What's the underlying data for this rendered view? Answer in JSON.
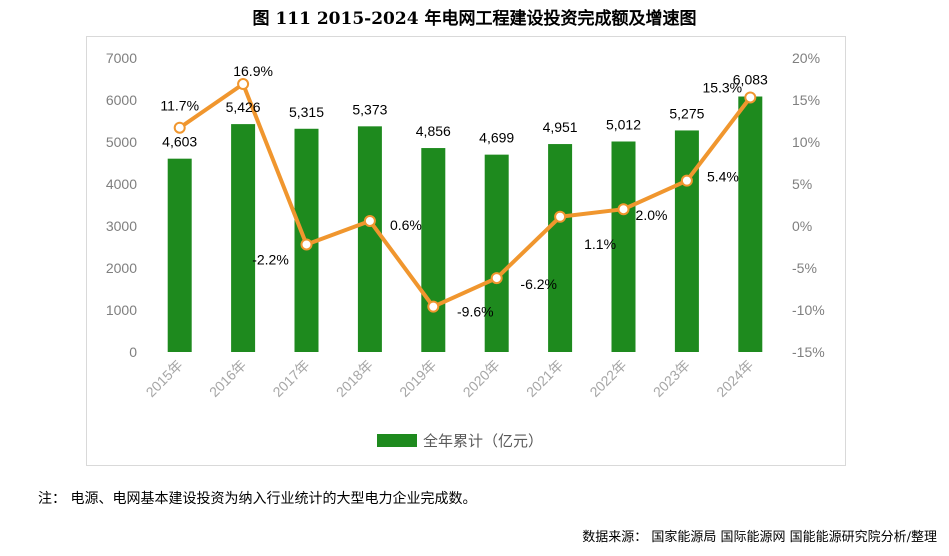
{
  "title": "图 111 2015-2024 年电网工程建设投资完成额及增速图",
  "note": "注： 电源、电网基本建设投资为纳入行业统计的大型电力企业完成数。",
  "source": "数据来源： 国家能源局 国际能源网 国能能源研究院分析/整理",
  "colors": {
    "bar": "#1e8a1e",
    "line": "#f0962e",
    "marker_fill": "#ffffff"
  },
  "chart_data": {
    "type": "bar+line",
    "categories": [
      "2015年",
      "2016年",
      "2017年",
      "2018年",
      "2019年",
      "2020年",
      "2021年",
      "2022年",
      "2023年",
      "2024年"
    ],
    "series": [
      {
        "name": "全年累计（亿元）",
        "type": "bar",
        "axis": "left",
        "values": [
          4603,
          5426,
          5315,
          5373,
          4856,
          4699,
          4951,
          5012,
          5275,
          6083
        ],
        "labels": [
          "4,603",
          "5,426",
          "5,315",
          "5,373",
          "4,856",
          "4,699",
          "4,951",
          "5,012",
          "5,275",
          "6,083"
        ]
      },
      {
        "type": "line",
        "axis": "right",
        "values": [
          11.7,
          16.9,
          -2.2,
          0.6,
          -9.6,
          -6.2,
          1.1,
          2.0,
          5.4,
          15.3
        ],
        "labels": [
          "11.7%",
          "16.9%",
          "-2.2%",
          "0.6%",
          "-9.6%",
          "-6.2%",
          "1.1%",
          "2.0%",
          "5.4%",
          "15.3%"
        ]
      }
    ],
    "y_left": {
      "min": 0,
      "max": 7000,
      "step": 1000,
      "ticks": [
        "0",
        "1000",
        "2000",
        "3000",
        "4000",
        "5000",
        "6000",
        "7000"
      ]
    },
    "y_right": {
      "min": -15,
      "max": 20,
      "step": 5,
      "ticks": [
        "-15%",
        "-10%",
        "-5%",
        "0%",
        "5%",
        "10%",
        "15%",
        "20%"
      ]
    },
    "legend": {
      "position": "bottom",
      "label": "全年累计（亿元）"
    },
    "grid": false
  }
}
